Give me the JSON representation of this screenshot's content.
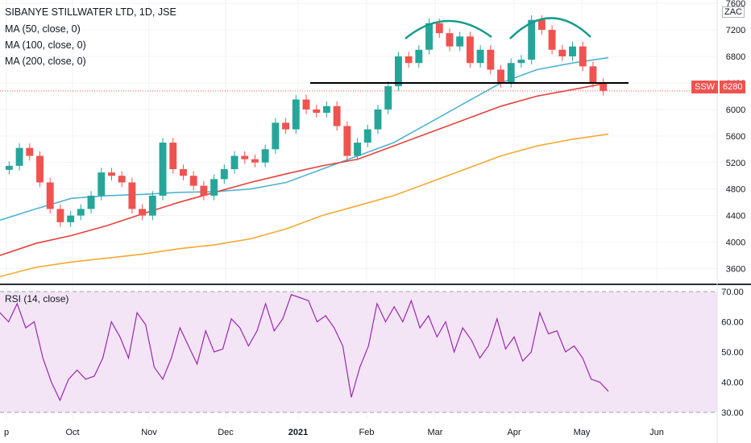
{
  "header": {
    "title": "SIBANYE STILLWATER LTD, 1D, JSE",
    "ma_legend": [
      "MA (50, close, 0)",
      "MA (100, close, 0)",
      "MA (200, close, 0)"
    ],
    "currency": "ZAC",
    "symbol_badge": "SSW",
    "last_price": "6280"
  },
  "rsi_legend": "RSI (14, close)",
  "colors": {
    "up": "#26a69a",
    "down": "#ef5350",
    "ma50": "#4fb3d1",
    "ma100": "#e5413d",
    "ma200": "#f7a832",
    "rsi_line": "#9c27b0",
    "rsi_band": "#f3e5f5",
    "neckline": "#000000",
    "arc": "#159c8a"
  },
  "chart_data": [
    {
      "type": "candlestick",
      "title": "SIBANYE STILLWATER LTD, 1D, JSE",
      "x_tick_labels": [
        "p",
        "Oct",
        "Nov",
        "Dec",
        "2021",
        "Feb",
        "Mar",
        "Apr",
        "May",
        "Jun"
      ],
      "y_tick_labels": [
        "3600",
        "4000",
        "4400",
        "4800",
        "5200",
        "5600",
        "6000",
        "6400",
        "6800",
        "7200",
        "7600"
      ],
      "ylim": [
        3400,
        7650
      ],
      "series": [
        {
          "name": "MA (50, close, 0)",
          "values": [
            4330,
            4500,
            4660,
            4700,
            4720,
            4750,
            4760,
            4800,
            4900,
            5100,
            5300,
            5500,
            5800,
            6100,
            6400,
            6600,
            6700,
            6780
          ]
        },
        {
          "name": "MA (100, close, 0)",
          "values": [
            3800,
            3980,
            4100,
            4250,
            4430,
            4600,
            4750,
            4900,
            5030,
            5150,
            5250,
            5450,
            5650,
            5850,
            6050,
            6200,
            6300,
            6400
          ]
        },
        {
          "name": "MA (200, close, 0)",
          "values": [
            3480,
            3620,
            3700,
            3760,
            3820,
            3900,
            3960,
            4050,
            4200,
            4400,
            4550,
            4700,
            4900,
            5100,
            5300,
            5450,
            5550,
            5630
          ]
        }
      ],
      "candles_close": [
        5150,
        5420,
        5300,
        4900,
        4500,
        4300,
        4400,
        4500,
        4700,
        5050,
        5000,
        4900,
        4500,
        4400,
        4700,
        5500,
        5100,
        5000,
        4850,
        4700,
        4950,
        5100,
        5300,
        5250,
        5200,
        5400,
        5800,
        5700,
        6150,
        6000,
        5950,
        6050,
        5750,
        5300,
        5500,
        5700,
        6000,
        6350,
        6800,
        6700,
        6900,
        7300,
        7150,
        6950,
        7100,
        6700,
        6900,
        6600,
        6400,
        6700,
        6750,
        7350,
        7200,
        6900,
        6800,
        6950,
        6650,
        6400,
        6280
      ],
      "last_price": 6280,
      "neckline": 6400
    },
    {
      "type": "line",
      "title": "RSI (14, close)",
      "y_tick_labels": [
        "30.00",
        "40.00",
        "50.00",
        "60.00",
        "70.00"
      ],
      "ylim": [
        28,
        71
      ],
      "band": [
        30,
        70
      ],
      "values": [
        63,
        60,
        66,
        58,
        60,
        48,
        40,
        34,
        41,
        44,
        41,
        42,
        48,
        60,
        55,
        48,
        63,
        59,
        45,
        41,
        48,
        58,
        52,
        46,
        57,
        50,
        51,
        61,
        58,
        52,
        57,
        66,
        57,
        61,
        69,
        68,
        67,
        60,
        62,
        58,
        52,
        35,
        45,
        52,
        66,
        60,
        65,
        60,
        67,
        58,
        62,
        55,
        60,
        50,
        58,
        54,
        48,
        52,
        61,
        51,
        55,
        47,
        50,
        63,
        56,
        57,
        50,
        52,
        48,
        41,
        40,
        37
      ]
    }
  ]
}
